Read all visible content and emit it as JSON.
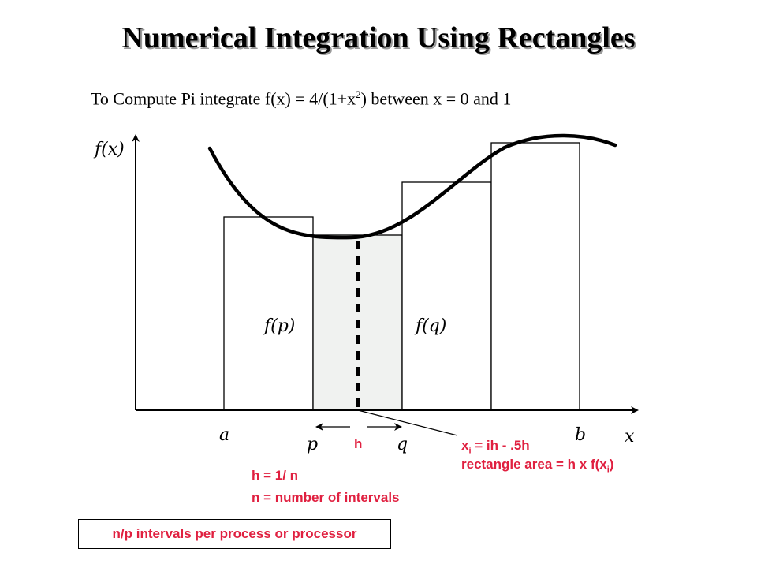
{
  "title": "Numerical Integration Using Rectangles",
  "subtitle": {
    "lead": "To Compute Pi  integrate   f(x) = 4/(1+x",
    "sup": "2",
    "tail": ")  between  x = 0  and  1"
  },
  "axes": {
    "y_label": "f(x)",
    "x_label": "x"
  },
  "labels": {
    "a": "a",
    "b": "b",
    "p": "p",
    "q": "q",
    "fp": "f(p)",
    "fq": "f(q)"
  },
  "annotations": {
    "h": "h",
    "xi_prefix": "x",
    "xi_sub": "i",
    "xi_rest": " = ih - .5h",
    "area_prefix": "rectangle area  = h x f(x",
    "area_sub": "i",
    "area_suffix": ")",
    "h_def": "h = 1/ n",
    "n_def": "n = number of intervals",
    "box": "n/p intervals per process or processor"
  },
  "colors": {
    "annotation": "#e02040",
    "shaded": "#f0f2f0"
  }
}
